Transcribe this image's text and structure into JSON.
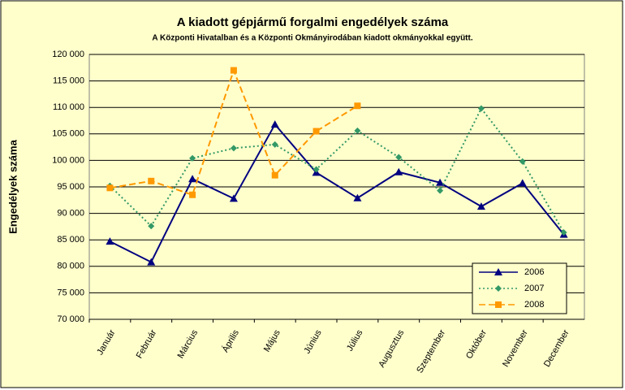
{
  "chart_data": {
    "type": "line",
    "title": "A  kiadott gépjármű forgalmi engedélyek száma",
    "subtitle": "A  Központi Hivatalban és a Központi Okmányirodában kiadott okmányokkal együtt.",
    "y_label": "Engedélyek száma",
    "categories": [
      "Január",
      "Február",
      "Március",
      "Április",
      "Május",
      "Június",
      "Július",
      "Augusztus",
      "Szeptember",
      "Október",
      "November",
      "December"
    ],
    "series": [
      {
        "name": "2006",
        "color": "#000080",
        "dash": "solid",
        "marker": "triangle",
        "values": [
          84700,
          80800,
          96500,
          92800,
          106800,
          97700,
          92900,
          97800,
          95800,
          91300,
          95700,
          86000
        ]
      },
      {
        "name": "2007",
        "color": "#339966",
        "dash": "dotted",
        "marker": "diamond",
        "values": [
          95200,
          87600,
          100400,
          102300,
          103000,
          98300,
          105600,
          100600,
          94300,
          109800,
          99800,
          86400
        ]
      },
      {
        "name": "2008",
        "color": "#ff9900",
        "dash": "dashed",
        "marker": "square",
        "values": [
          94800,
          96100,
          93500,
          117000,
          97200,
          105500,
          110300,
          null,
          null,
          null,
          null,
          null
        ]
      }
    ],
    "ylim": [
      70000,
      120000
    ],
    "yticks": [
      {
        "value": 70000,
        "label": "70 000"
      },
      {
        "value": 75000,
        "label": "75 000"
      },
      {
        "value": 80000,
        "label": "80 000"
      },
      {
        "value": 85000,
        "label": "85 000"
      },
      {
        "value": 90000,
        "label": "90 000"
      },
      {
        "value": 95000,
        "label": "95 000"
      },
      {
        "value": 100000,
        "label": "100 000"
      },
      {
        "value": 105000,
        "label": "105 000"
      },
      {
        "value": 110000,
        "label": "110 000"
      },
      {
        "value": 115000,
        "label": "115 000"
      },
      {
        "value": 120000,
        "label": "120 000"
      }
    ],
    "grid": true,
    "legend": "lower right"
  }
}
